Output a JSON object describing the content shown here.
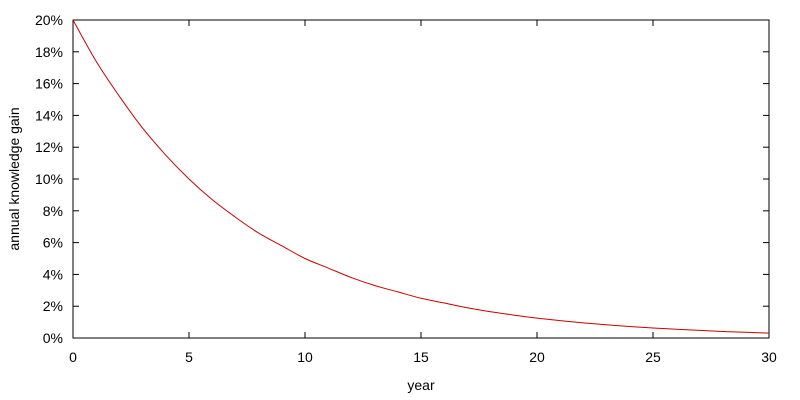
{
  "chart_data": {
    "type": "line",
    "title": "",
    "xlabel": "year",
    "ylabel": "annual knowledge gain",
    "xlim": [
      0,
      30
    ],
    "ylim": [
      0,
      20
    ],
    "y_unit": "%",
    "x_ticks": [
      "0",
      "5",
      "10",
      "15",
      "20",
      "25",
      "30"
    ],
    "y_ticks": [
      "0%",
      "2%",
      "4%",
      "6%",
      "8%",
      "10%",
      "12%",
      "14%",
      "16%",
      "18%",
      "20%"
    ],
    "grid": false,
    "series": [
      {
        "color": "#cc0000",
        "x": [
          0,
          1,
          2,
          3,
          4,
          5,
          6,
          7,
          8,
          9,
          10,
          11,
          12,
          13,
          14,
          15,
          16,
          17,
          18,
          19,
          20,
          21,
          22,
          23,
          24,
          25,
          26,
          27,
          28,
          29,
          30
        ],
        "values": [
          20,
          17.4,
          15.2,
          13.2,
          11.5,
          10,
          8.7,
          7.6,
          6.6,
          5.8,
          5,
          4.4,
          3.8,
          3.3,
          2.9,
          2.5,
          2.2,
          1.9,
          1.65,
          1.44,
          1.25,
          1.09,
          0.95,
          0.83,
          0.72,
          0.63,
          0.55,
          0.48,
          0.41,
          0.36,
          0.31
        ]
      }
    ]
  }
}
